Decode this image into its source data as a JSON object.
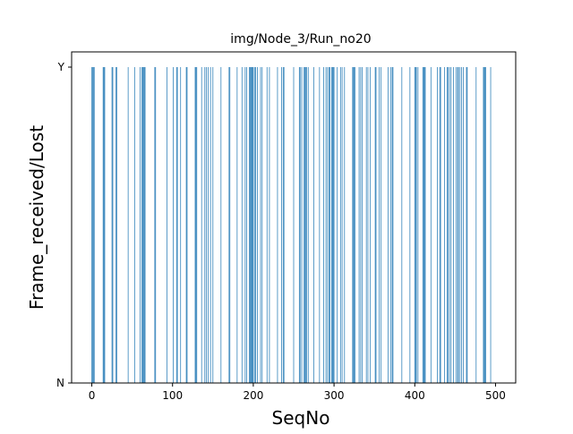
{
  "chart_data": {
    "type": "bar",
    "title": "img/Node_3/Run_no20",
    "xlabel": "SeqNo",
    "ylabel": "Frame_received/Lost",
    "xlim": [
      -25,
      525
    ],
    "ylim": [
      0,
      1
    ],
    "x_ticks": [
      0,
      100,
      200,
      300,
      400,
      500
    ],
    "y_ticks": [
      {
        "value": 0,
        "label": "N"
      },
      {
        "value": 1,
        "label": "Y"
      }
    ],
    "bar_color": "#1f77b4",
    "bar_width": 0.8,
    "received_seqno": [
      0,
      1,
      2,
      3,
      14,
      15,
      16,
      25,
      26,
      30,
      31,
      45,
      53,
      60,
      62,
      63,
      64,
      65,
      66,
      78,
      79,
      93,
      101,
      105,
      106,
      110,
      117,
      118,
      128,
      129,
      130,
      136,
      140,
      142,
      144,
      147,
      150,
      160,
      170,
      171,
      180,
      186,
      190,
      192,
      195,
      196,
      197,
      198,
      199,
      200,
      202,
      203,
      205,
      209,
      211,
      217,
      220,
      230,
      235,
      237,
      238,
      250,
      257,
      258,
      260,
      263,
      264,
      265,
      266,
      268,
      275,
      282,
      287,
      290,
      292,
      294,
      295,
      297,
      298,
      299,
      300,
      304,
      308,
      310,
      313,
      323,
      324,
      325,
      326,
      331,
      333,
      335,
      340,
      342,
      345,
      351,
      352,
      356,
      358,
      367,
      370,
      372,
      373,
      384,
      394,
      400,
      401,
      402,
      404,
      410,
      411,
      412,
      413,
      420,
      428,
      431,
      432,
      437,
      440,
      441,
      443,
      445,
      448,
      451,
      453,
      454,
      456,
      458,
      460,
      464,
      465,
      476,
      485,
      486,
      487,
      488,
      494
    ]
  }
}
